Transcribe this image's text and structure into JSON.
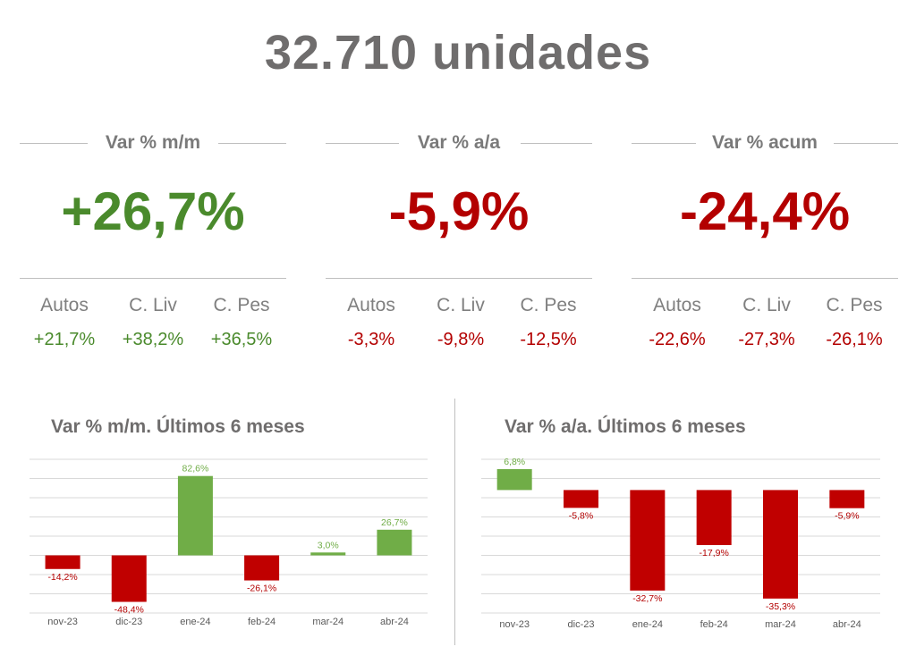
{
  "headline": "32.710  unidades",
  "colors": {
    "positive": "#4a8a2c",
    "negative": "#b30000",
    "bar_positive": "#70ad47",
    "bar_negative": "#c00000"
  },
  "panels": [
    {
      "title": "Var % m/m",
      "value": "+26,7%",
      "sign": "pos",
      "items": [
        {
          "label": "Autos",
          "value": "+21,7%",
          "sign": "pos"
        },
        {
          "label": "C. Liv",
          "value": "+38,2%",
          "sign": "pos"
        },
        {
          "label": "C. Pes",
          "value": "+36,5%",
          "sign": "pos"
        }
      ]
    },
    {
      "title": "Var % a/a",
      "value": "-5,9%",
      "sign": "neg",
      "items": [
        {
          "label": "Autos",
          "value": "-3,3%",
          "sign": "neg"
        },
        {
          "label": "C. Liv",
          "value": "-9,8%",
          "sign": "neg"
        },
        {
          "label": "C. Pes",
          "value": "-12,5%",
          "sign": "neg"
        }
      ]
    },
    {
      "title": "Var % acum",
      "value": "-24,4%",
      "sign": "neg",
      "items": [
        {
          "label": "Autos",
          "value": "-22,6%",
          "sign": "neg"
        },
        {
          "label": "C. Liv",
          "value": "-27,3%",
          "sign": "neg"
        },
        {
          "label": "C. Pes",
          "value": "-26,1%",
          "sign": "neg"
        }
      ]
    }
  ],
  "chart_data": [
    {
      "type": "bar",
      "title": "Var % m/m. Últimos 6 meses",
      "categories": [
        "nov-23",
        "dic-23",
        "ene-24",
        "feb-24",
        "mar-24",
        "abr-24"
      ],
      "values": [
        -14.2,
        -48.4,
        82.6,
        -26.1,
        3.0,
        26.7
      ],
      "labels": [
        "-14,2%",
        "-48,4%",
        "82,6%",
        "-26,1%",
        "3,0%",
        "26,7%"
      ],
      "ylim": [
        -60,
        100
      ],
      "grid": true
    },
    {
      "type": "bar",
      "title": "Var % a/a. Últimos 6 meses",
      "categories": [
        "nov-23",
        "dic-23",
        "ene-24",
        "feb-24",
        "mar-24",
        "abr-24"
      ],
      "values": [
        6.8,
        -5.8,
        -32.7,
        -17.9,
        -35.3,
        -5.9
      ],
      "labels": [
        "6,8%",
        "-5,8%",
        "-32,7%",
        "-17,9%",
        "-35,3%",
        "-5,9%"
      ],
      "ylim": [
        -40,
        10
      ],
      "grid": true
    }
  ]
}
